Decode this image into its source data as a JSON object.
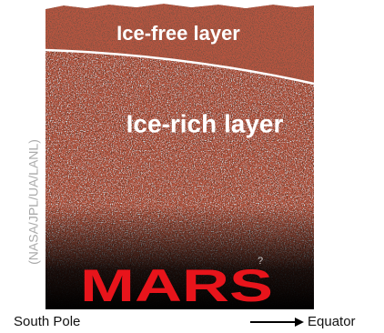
{
  "labels": {
    "top_layer": "Ice-free layer",
    "middle_layer": "Ice-rich layer",
    "planet": "MARS",
    "credit": "(NASA/JPL/UA/LANL)",
    "unknown": "?",
    "left_axis": "South Pole",
    "right_axis": "Equator"
  }
}
